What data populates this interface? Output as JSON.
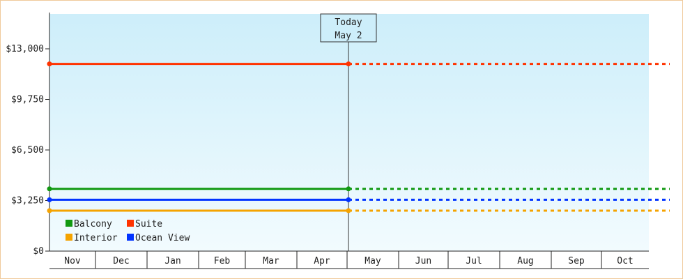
{
  "chart_data": {
    "type": "line",
    "x_categories": [
      "Nov",
      "Dec",
      "Jan",
      "Feb",
      "Mar",
      "Apr",
      "May",
      "Jun",
      "Jul",
      "Aug",
      "Sep",
      "Oct"
    ],
    "y_ticks": [
      "$0",
      "$3,250",
      "$6,500",
      "$9,750",
      "$13,000"
    ],
    "y_tick_values": [
      0,
      3250,
      6500,
      9750,
      13000
    ],
    "ylim": [
      0,
      13000
    ],
    "today_label": "Today",
    "today_date": "May 2",
    "series": [
      {
        "name": "Suite",
        "color": "#ff3300",
        "value": 12030
      },
      {
        "name": "Balcony",
        "color": "#119911",
        "value": 4000
      },
      {
        "name": "Ocean View",
        "color": "#0033ff",
        "value": 3300
      },
      {
        "name": "Interior",
        "color": "#f5a300",
        "value": 2600
      }
    ],
    "legend": {
      "placement": "bottom-left",
      "rows": [
        [
          "Balcony",
          "Suite"
        ],
        [
          "Interior",
          "Ocean View"
        ]
      ]
    },
    "colors": {
      "plot_top": "#cdeefa",
      "plot_bottom": "#f2fbfe",
      "frame_border": "#f0c99a"
    },
    "solid_until": "today",
    "dashed_after": "today"
  }
}
